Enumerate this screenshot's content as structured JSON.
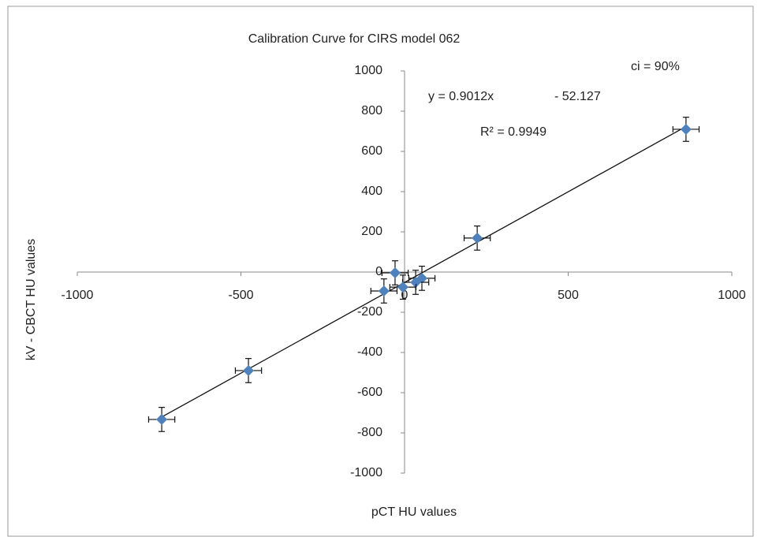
{
  "chart_data": {
    "type": "scatter",
    "title": "Calibration Curve for CIRS model 062",
    "annotations": [
      "ci = 90%",
      "y = 0.9012x",
      "- 52.127",
      "R² = 0.9949"
    ],
    "x_label": "pCT HU values",
    "y_label": "kV  - CBCT HU values",
    "xlim": [
      -1000,
      1000
    ],
    "xticks": [
      -1000,
      -500,
      0,
      500,
      1000
    ],
    "ylim": [
      -1000,
      1000
    ],
    "yticks": [
      1000,
      800,
      600,
      400,
      200,
      0,
      -200,
      -400,
      -600,
      -800,
      -1000
    ],
    "grid": false,
    "trendline": true,
    "series": [
      {
        "color": "#4f81bd",
        "x": [
          860,
          222,
          53,
          34,
          -29,
          -5,
          -63,
          -477,
          -742
        ],
        "values": [
          710,
          169,
          -31,
          -51,
          -4,
          -75,
          -94,
          -490,
          -733
        ],
        "xerr": [
          40,
          40,
          40,
          40,
          40,
          40,
          40,
          40,
          40
        ],
        "yerr": [
          60,
          60,
          60,
          60,
          60,
          60,
          60,
          60,
          60
        ]
      }
    ]
  }
}
